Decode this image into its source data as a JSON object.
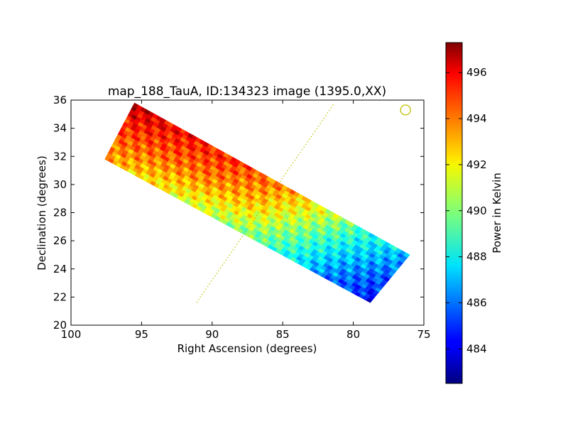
{
  "chart_data": {
    "type": "heatmap",
    "title": "map_188_TauA, ID:134323 image (1395.0,XX)",
    "xlabel": "Right Ascension (degrees)",
    "ylabel": "Declination (degrees)",
    "xlim": [
      100,
      75
    ],
    "ylim": [
      20,
      36
    ],
    "xticks": [
      100,
      95,
      90,
      85,
      80,
      75
    ],
    "yticks": [
      20,
      22,
      24,
      26,
      28,
      30,
      32,
      34,
      36
    ],
    "grid": false,
    "colorbar": {
      "label": "Power in Kelvin",
      "range": [
        482.5,
        497.3
      ],
      "ticks": [
        484,
        486,
        488,
        490,
        492,
        494,
        496
      ],
      "colormap": "jet"
    },
    "scan_region": {
      "corners": [
        {
          "ra": 97.6,
          "dec": 31.8
        },
        {
          "ra": 95.5,
          "dec": 35.8
        },
        {
          "ra": 76.0,
          "dec": 25.0
        },
        {
          "ra": 78.8,
          "dec": 21.6
        }
      ],
      "values": [
        [
          493,
          494.5,
          496.5
        ],
        [
          492,
          494,
          495.5
        ],
        [
          491,
          493.5,
          495
        ],
        [
          490,
          492.5,
          494
        ],
        [
          488.5,
          490,
          492
        ],
        [
          486,
          487.5,
          489
        ],
        [
          484.5,
          485.5,
          487
        ]
      ]
    },
    "overlay_line": {
      "color": "#bfbf00",
      "style": "dotted",
      "points": [
        {
          "ra": 91.1,
          "dec": 21.6
        },
        {
          "ra": 81.4,
          "dec": 35.7
        }
      ]
    },
    "marker": {
      "shape": "circle",
      "color": "#bfbf00",
      "ra": 76.3,
      "dec": 35.3
    }
  }
}
